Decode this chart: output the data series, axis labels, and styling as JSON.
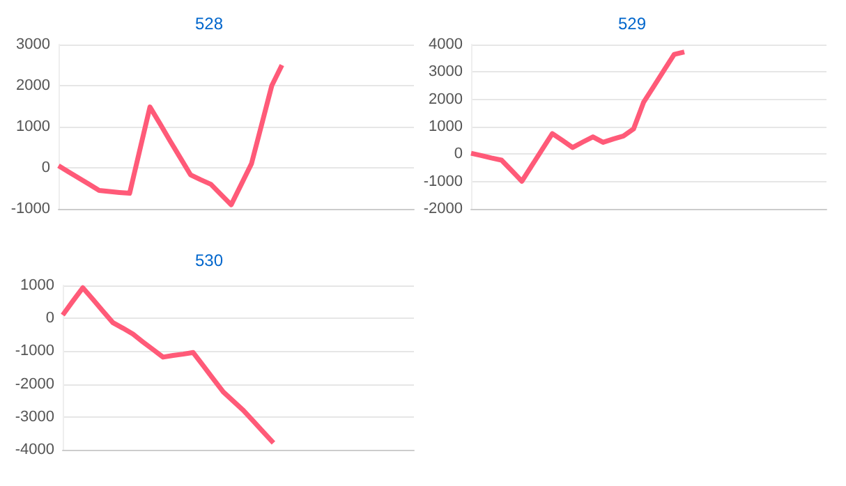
{
  "chart_data": [
    {
      "type": "line",
      "title": "528",
      "categories": [
        null,
        null,
        null,
        null,
        null,
        null,
        null,
        null,
        null,
        null,
        null,
        null,
        null,
        null,
        null,
        null,
        null,
        null,
        null,
        null,
        null,
        null,
        null,
        null,
        null,
        null,
        null,
        null,
        null,
        null,
        null,
        null,
        null,
        null,
        null,
        null
      ],
      "values": [
        50,
        -100,
        -250,
        -400,
        -550,
        -575,
        -600,
        -620,
        430,
        1480,
        1070,
        650,
        240,
        -170,
        -290,
        -400,
        -650,
        -900,
        -400,
        100,
        1050,
        2000,
        2500,
        null,
        null,
        null,
        null,
        null,
        null,
        null,
        null,
        null,
        null,
        null,
        null,
        null
      ],
      "color": "#ff5a78",
      "ylim": [
        -1000,
        3000
      ],
      "yticks": [
        -1000,
        0,
        1000,
        2000,
        3000
      ],
      "grid": "y",
      "tick_labels": "y"
    },
    {
      "type": "line",
      "title": "529",
      "categories": [
        null,
        null,
        null,
        null,
        null,
        null,
        null,
        null,
        null,
        null,
        null,
        null,
        null,
        null,
        null,
        null,
        null,
        null,
        null,
        null,
        null,
        null,
        null,
        null,
        null,
        null,
        null,
        null,
        null,
        null,
        null,
        null,
        null,
        null,
        null,
        null
      ],
      "values": [
        30,
        -50,
        -140,
        -220,
        -600,
        -990,
        -410,
        170,
        750,
        500,
        240,
        440,
        630,
        430,
        550,
        660,
        920,
        1900,
        2480,
        3060,
        3640,
        3730,
        null,
        null,
        null,
        null,
        null,
        null,
        null,
        null,
        null,
        null,
        null,
        null,
        null,
        null
      ],
      "color": "#ff5a78",
      "ylim": [
        -2000,
        4000
      ],
      "yticks": [
        -2000,
        -1000,
        0,
        1000,
        2000,
        3000,
        4000
      ],
      "grid": "y",
      "tick_labels": "y"
    },
    {
      "type": "line",
      "title": "530",
      "categories": [
        null,
        null,
        null,
        null,
        null,
        null,
        null,
        null,
        null,
        null,
        null,
        null,
        null,
        null,
        null,
        null,
        null,
        null,
        null,
        null,
        null,
        null,
        null,
        null,
        null,
        null,
        null,
        null,
        null,
        null,
        null,
        null,
        null,
        null,
        null,
        null
      ],
      "values": [
        100,
        520,
        930,
        580,
        220,
        -130,
        -300,
        -480,
        -720,
        -950,
        -1180,
        -1130,
        -1090,
        -1040,
        -1440,
        -1840,
        -2240,
        -2520,
        -2800,
        -3130,
        -3460,
        -3790,
        null,
        null,
        null,
        null,
        null,
        null,
        null,
        null,
        null,
        null,
        null,
        null,
        null,
        null
      ],
      "color": "#ff5a78",
      "ylim": [
        -4000,
        1000
      ],
      "yticks": [
        -4000,
        -3000,
        -2000,
        -1000,
        0,
        1000
      ],
      "grid": "y",
      "tick_labels": "y"
    }
  ]
}
